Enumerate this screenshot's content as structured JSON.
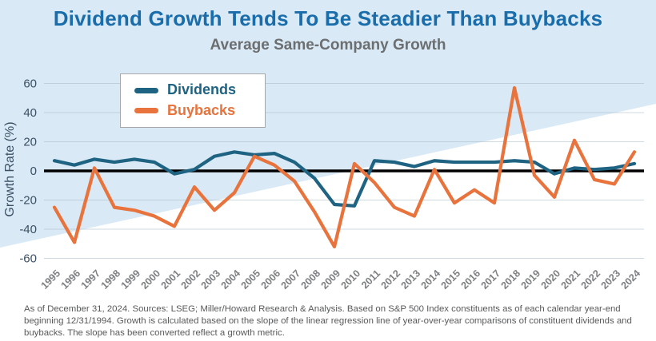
{
  "title": "Dividend Growth Tends To Be Steadier Than Buybacks",
  "subtitle": "Average Same-Company Growth",
  "footnote": "As of December 31, 2024. Sources: LSEG; Miller/Howard Research & Analysis. Based on S&P 500 Index constituents as of each calendar year-end beginning 12/31/1994. Growth is calculated based on the slope of the linear regression line of year-over-year comparisons of constituent dividends and buybacks. The slope has been converted reflect a growth metric.",
  "colors": {
    "background_blue": "#d9e9f5",
    "background_wedge_white": "#ffffff",
    "title_blue": "#1a6dab",
    "subtitle_gray": "#6c6e70",
    "dividends_line": "#1f6382",
    "buybacks_line": "#e8733c",
    "zero_line": "#000000",
    "gridline": "#a9bcc8",
    "y_tick_text": "#3a5064",
    "x_tick_text": "#7d7f82",
    "footnote_gray": "#58595b"
  },
  "chart_data": {
    "type": "line",
    "title": "Dividend Growth Tends To Be Steadier Than Buybacks",
    "subtitle": "Average Same-Company Growth",
    "xlabel": "",
    "ylabel": "Growth Rate (%)",
    "ylim": [
      -60,
      60
    ],
    "yticks": [
      60,
      40,
      20,
      0,
      -20,
      -40,
      -60
    ],
    "grid": "horizontal",
    "zero_line": true,
    "legend_position": "top-left",
    "categories": [
      "1995",
      "1996",
      "1997",
      "1998",
      "1999",
      "2000",
      "2001",
      "2002",
      "2003",
      "2004",
      "2005",
      "2006",
      "2007",
      "2008",
      "2009",
      "2010",
      "2011",
      "2012",
      "2013",
      "2014",
      "2015",
      "2016",
      "2017",
      "2018",
      "2019",
      "2020",
      "2021",
      "2022",
      "2023",
      "2024"
    ],
    "series": [
      {
        "name": "Dividends",
        "color": "#1f6382",
        "values": [
          7,
          4,
          8,
          6,
          8,
          6,
          -2,
          1,
          10,
          13,
          11,
          12,
          6,
          -5,
          -23,
          -24,
          7,
          6,
          3,
          7,
          6,
          6,
          6,
          7,
          6,
          -2,
          2,
          1,
          2,
          5
        ]
      },
      {
        "name": "Buybacks",
        "color": "#e8733c",
        "values": [
          -25,
          -49,
          2,
          -25,
          -27,
          -31,
          -38,
          -11,
          -27,
          -15,
          10,
          4,
          -7,
          -28,
          -52,
          5,
          -8,
          -25,
          -31,
          1,
          -22,
          -13,
          -22,
          57,
          -3,
          -18,
          21,
          -6,
          -9,
          13
        ]
      }
    ]
  }
}
